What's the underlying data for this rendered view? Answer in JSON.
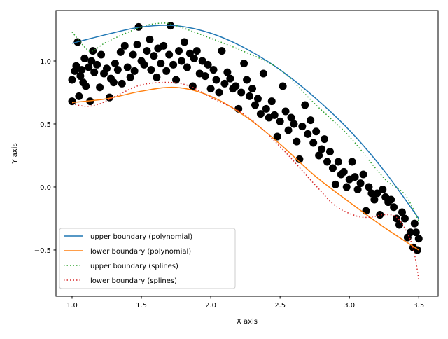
{
  "chart_data": {
    "type": "scatter",
    "title": "",
    "xlabel": "X axis",
    "ylabel": "Y axis",
    "xlim": [
      0.884,
      3.64
    ],
    "ylim": [
      -0.867,
      1.4
    ],
    "grid": false,
    "legend_position": "lower-left",
    "x_ticks": [
      1.0,
      1.5,
      2.0,
      2.5,
      3.0,
      3.5
    ],
    "x_tick_labels": [
      "1.0",
      "1.5",
      "2.0",
      "2.5",
      "3.0",
      "3.5"
    ],
    "y_ticks": [
      -0.5,
      0.0,
      0.5,
      1.0
    ],
    "y_tick_labels": [
      "−0.5",
      "0.0",
      "0.5",
      "1.0"
    ],
    "scatter": {
      "color": "#000000",
      "points": [
        [
          1.0,
          0.68
        ],
        [
          1.0,
          0.85
        ],
        [
          1.02,
          0.92
        ],
        [
          1.03,
          0.96
        ],
        [
          1.04,
          1.15
        ],
        [
          1.05,
          0.72
        ],
        [
          1.06,
          0.88
        ],
        [
          1.07,
          0.93
        ],
        [
          1.08,
          0.83
        ],
        [
          1.09,
          1.02
        ],
        [
          1.1,
          0.8
        ],
        [
          1.12,
          0.95
        ],
        [
          1.13,
          0.68
        ],
        [
          1.14,
          1.0
        ],
        [
          1.15,
          1.08
        ],
        [
          1.16,
          0.91
        ],
        [
          1.18,
          0.97
        ],
        [
          1.2,
          0.79
        ],
        [
          1.21,
          1.05
        ],
        [
          1.23,
          0.9
        ],
        [
          1.25,
          0.94
        ],
        [
          1.27,
          0.71
        ],
        [
          1.28,
          0.86
        ],
        [
          1.3,
          0.83
        ],
        [
          1.31,
          0.98
        ],
        [
          1.33,
          0.93
        ],
        [
          1.35,
          1.07
        ],
        [
          1.36,
          0.82
        ],
        [
          1.38,
          1.12
        ],
        [
          1.4,
          0.95
        ],
        [
          1.42,
          0.87
        ],
        [
          1.44,
          1.05
        ],
        [
          1.45,
          0.92
        ],
        [
          1.47,
          1.13
        ],
        [
          1.48,
          1.27
        ],
        [
          1.5,
          1.0
        ],
        [
          1.52,
          0.97
        ],
        [
          1.54,
          1.08
        ],
        [
          1.56,
          1.17
        ],
        [
          1.57,
          0.93
        ],
        [
          1.59,
          1.04
        ],
        [
          1.61,
          0.87
        ],
        [
          1.62,
          1.1
        ],
        [
          1.64,
          0.98
        ],
        [
          1.66,
          1.12
        ],
        [
          1.68,
          0.92
        ],
        [
          1.7,
          1.05
        ],
        [
          1.71,
          1.28
        ],
        [
          1.73,
          0.97
        ],
        [
          1.75,
          0.85
        ],
        [
          1.77,
          1.08
        ],
        [
          1.79,
          1.0
        ],
        [
          1.81,
          1.15
        ],
        [
          1.83,
          0.95
        ],
        [
          1.85,
          1.06
        ],
        [
          1.87,
          0.8
        ],
        [
          1.88,
          1.02
        ],
        [
          1.9,
          1.08
        ],
        [
          1.92,
          0.9
        ],
        [
          1.94,
          1.0
        ],
        [
          1.96,
          0.88
        ],
        [
          1.98,
          0.97
        ],
        [
          2.0,
          0.78
        ],
        [
          2.02,
          0.93
        ],
        [
          2.04,
          0.85
        ],
        [
          2.06,
          0.75
        ],
        [
          2.08,
          1.08
        ],
        [
          2.1,
          0.82
        ],
        [
          2.12,
          0.91
        ],
        [
          2.14,
          0.86
        ],
        [
          2.16,
          0.78
        ],
        [
          2.18,
          0.8
        ],
        [
          2.2,
          0.62
        ],
        [
          2.22,
          0.75
        ],
        [
          2.24,
          0.98
        ],
        [
          2.26,
          0.85
        ],
        [
          2.28,
          0.72
        ],
        [
          2.3,
          0.78
        ],
        [
          2.32,
          0.65
        ],
        [
          2.34,
          0.7
        ],
        [
          2.36,
          0.58
        ],
        [
          2.38,
          0.9
        ],
        [
          2.4,
          0.62
        ],
        [
          2.42,
          0.55
        ],
        [
          2.44,
          0.68
        ],
        [
          2.46,
          0.57
        ],
        [
          2.48,
          0.4
        ],
        [
          2.5,
          0.52
        ],
        [
          2.52,
          0.8
        ],
        [
          2.54,
          0.6
        ],
        [
          2.56,
          0.45
        ],
        [
          2.58,
          0.55
        ],
        [
          2.6,
          0.5
        ],
        [
          2.62,
          0.36
        ],
        [
          2.64,
          0.22
        ],
        [
          2.66,
          0.48
        ],
        [
          2.68,
          0.65
        ],
        [
          2.7,
          0.42
        ],
        [
          2.72,
          0.53
        ],
        [
          2.74,
          0.35
        ],
        [
          2.76,
          0.44
        ],
        [
          2.78,
          0.25
        ],
        [
          2.8,
          0.3
        ],
        [
          2.82,
          0.38
        ],
        [
          2.84,
          0.2
        ],
        [
          2.86,
          0.28
        ],
        [
          2.88,
          0.15
        ],
        [
          2.9,
          0.02
        ],
        [
          2.92,
          0.2
        ],
        [
          2.94,
          0.1
        ],
        [
          2.96,
          0.12
        ],
        [
          2.98,
          0.0
        ],
        [
          3.0,
          0.06
        ],
        [
          3.02,
          0.2
        ],
        [
          3.04,
          0.08
        ],
        [
          3.06,
          -0.02
        ],
        [
          3.08,
          0.03
        ],
        [
          3.1,
          0.1
        ],
        [
          3.12,
          -0.19
        ],
        [
          3.14,
          0.0
        ],
        [
          3.16,
          -0.05
        ],
        [
          3.18,
          -0.1
        ],
        [
          3.2,
          -0.05
        ],
        [
          3.22,
          -0.22
        ],
        [
          3.24,
          -0.02
        ],
        [
          3.26,
          -0.08
        ],
        [
          3.28,
          -0.12
        ],
        [
          3.3,
          -0.1
        ],
        [
          3.32,
          -0.16
        ],
        [
          3.34,
          -0.25
        ],
        [
          3.36,
          -0.3
        ],
        [
          3.38,
          -0.2
        ],
        [
          3.4,
          -0.25
        ],
        [
          3.42,
          -0.4
        ],
        [
          3.44,
          -0.36
        ],
        [
          3.46,
          -0.48
        ],
        [
          3.48,
          -0.36
        ],
        [
          3.5,
          -0.41
        ],
        [
          3.49,
          -0.5
        ],
        [
          3.47,
          -0.29
        ]
      ]
    },
    "series": [
      {
        "name": "upper boundary (polynomial)",
        "color": "#1f77b4",
        "style": "solid",
        "x": [
          1.0,
          1.25,
          1.5,
          1.75,
          2.0,
          2.25,
          2.5,
          2.75,
          3.0,
          3.25,
          3.5
        ],
        "y": [
          1.14,
          1.21,
          1.27,
          1.28,
          1.22,
          1.1,
          0.93,
          0.71,
          0.45,
          0.13,
          -0.25
        ]
      },
      {
        "name": "lower boundary (polynomial)",
        "color": "#ff7f0e",
        "style": "solid",
        "x": [
          1.0,
          1.25,
          1.5,
          1.75,
          2.0,
          2.25,
          2.5,
          2.75,
          3.0,
          3.25,
          3.5
        ],
        "y": [
          0.67,
          0.7,
          0.76,
          0.79,
          0.72,
          0.56,
          0.34,
          0.09,
          -0.12,
          -0.32,
          -0.5
        ]
      },
      {
        "name": "upper boundary (splines)",
        "color": "#2ca02c",
        "style": "dotted",
        "x": [
          1.0,
          1.1,
          1.15,
          1.25,
          1.5,
          1.65,
          1.75,
          2.0,
          2.25,
          2.5,
          2.75,
          3.0,
          3.25,
          3.4,
          3.5
        ],
        "y": [
          1.23,
          1.1,
          1.08,
          1.15,
          1.27,
          1.3,
          1.28,
          1.18,
          1.07,
          0.93,
          0.66,
          0.4,
          0.07,
          -0.06,
          -0.27
        ]
      },
      {
        "name": "lower boundary (splines)",
        "color": "#d62728",
        "style": "dotted",
        "x": [
          1.0,
          1.1,
          1.2,
          1.35,
          1.5,
          1.7,
          1.85,
          2.0,
          2.25,
          2.5,
          2.75,
          2.9,
          3.05,
          3.15,
          3.25,
          3.35,
          3.45,
          3.5
        ],
        "y": [
          0.66,
          0.64,
          0.66,
          0.74,
          0.81,
          0.83,
          0.8,
          0.71,
          0.57,
          0.32,
          0.02,
          -0.15,
          -0.23,
          -0.24,
          -0.22,
          -0.25,
          -0.45,
          -0.73
        ]
      }
    ]
  }
}
